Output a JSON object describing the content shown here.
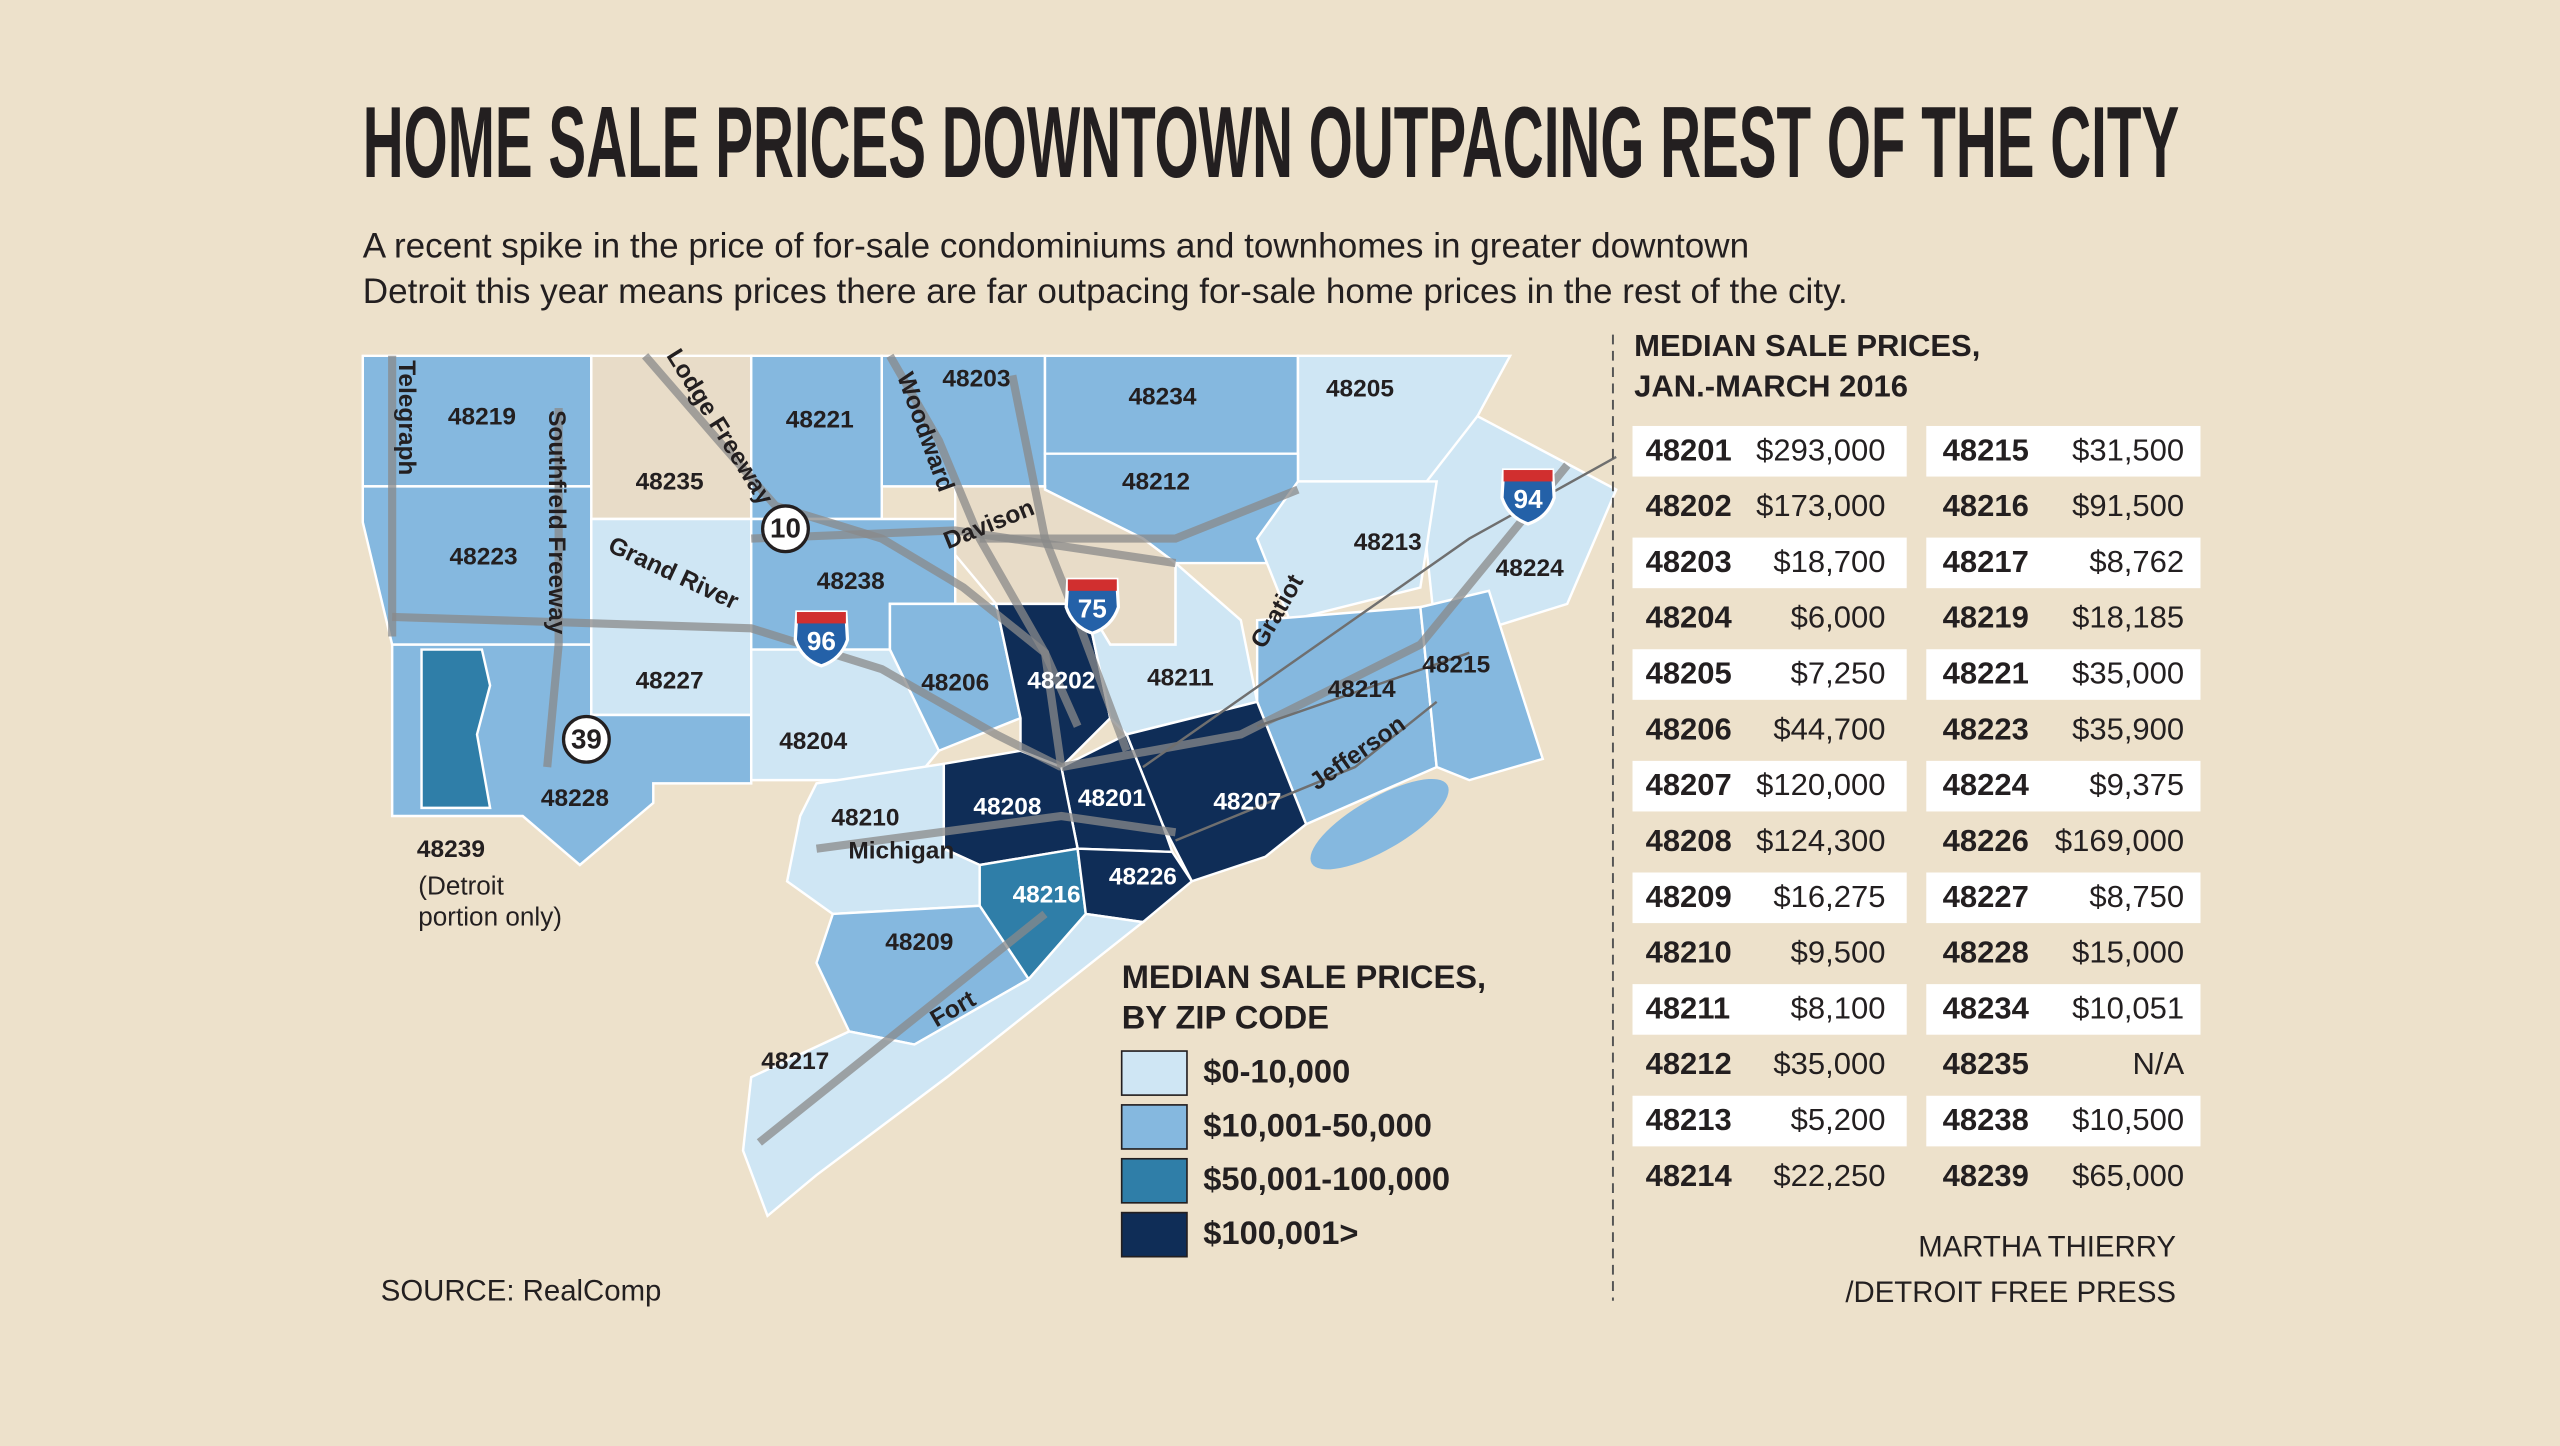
{
  "title": "HOME SALE PRICES DOWNTOWN OUTPACING REST OF THE CITY",
  "subtitle": [
    "A recent spike in the price of for-sale condominiums and townhomes in greater downtown",
    "Detroit this year means prices there are far outpacing for-sale home prices in the rest of the city."
  ],
  "map": {
    "zip_labels": [
      "48219",
      "48235",
      "48221",
      "48203",
      "48234",
      "48205",
      "48212",
      "48213",
      "48224",
      "48223",
      "48238",
      "48227",
      "48206",
      "48202",
      "48211",
      "48214",
      "48215",
      "48204",
      "48228",
      "48208",
      "48201",
      "48207",
      "48210",
      "48216",
      "48226",
      "48209",
      "48217",
      "48239"
    ],
    "note": [
      "(Detroit",
      "portion only)"
    ],
    "roads": [
      "Telegraph",
      "Southfield Freeway",
      "Lodge Freeway",
      "Woodward",
      "Davison",
      "Grand River",
      "Gratiot",
      "Jefferson",
      "Michigan",
      "Fort"
    ],
    "shields": [
      "10",
      "39",
      "96",
      "75",
      "94"
    ]
  },
  "legend": {
    "title": [
      "MEDIAN SALE PRICES,",
      "BY ZIP CODE"
    ],
    "items": [
      "$0-10,000",
      "$10,001-50,000",
      "$50,001-100,000",
      "$100,001>"
    ]
  },
  "table": {
    "title": [
      "MEDIAN SALE PRICES,",
      "JAN.-MARCH 2016"
    ],
    "columns": [
      [
        [
          "48201",
          "$293,000"
        ],
        [
          "48202",
          "$173,000"
        ],
        [
          "48203",
          "$18,700"
        ],
        [
          "48204",
          "$6,000"
        ],
        [
          "48205",
          "$7,250"
        ],
        [
          "48206",
          "$44,700"
        ],
        [
          "48207",
          "$120,000"
        ],
        [
          "48208",
          "$124,300"
        ],
        [
          "48209",
          "$16,275"
        ],
        [
          "48210",
          "$9,500"
        ],
        [
          "48211",
          "$8,100"
        ],
        [
          "48212",
          "$35,000"
        ],
        [
          "48213",
          "$5,200"
        ],
        [
          "48214",
          "$22,250"
        ]
      ],
      [
        [
          "48215",
          "$31,500"
        ],
        [
          "48216",
          "$91,500"
        ],
        [
          "48217",
          "$8,762"
        ],
        [
          "48219",
          "$18,185"
        ],
        [
          "48221",
          "$35,000"
        ],
        [
          "48223",
          "$35,900"
        ],
        [
          "48224",
          "$9,375"
        ],
        [
          "48226",
          "$169,000"
        ],
        [
          "48227",
          "$8,750"
        ],
        [
          "48228",
          "$15,000"
        ],
        [
          "48234",
          "$10,051"
        ],
        [
          "48235",
          "N/A"
        ],
        [
          "48238",
          "$10,500"
        ],
        [
          "48239",
          "$65,000"
        ]
      ]
    ]
  },
  "source": "SOURCE: RealComp",
  "credit": [
    "MARTHA THIERRY",
    "/DETROIT FREE PRESS"
  ]
}
